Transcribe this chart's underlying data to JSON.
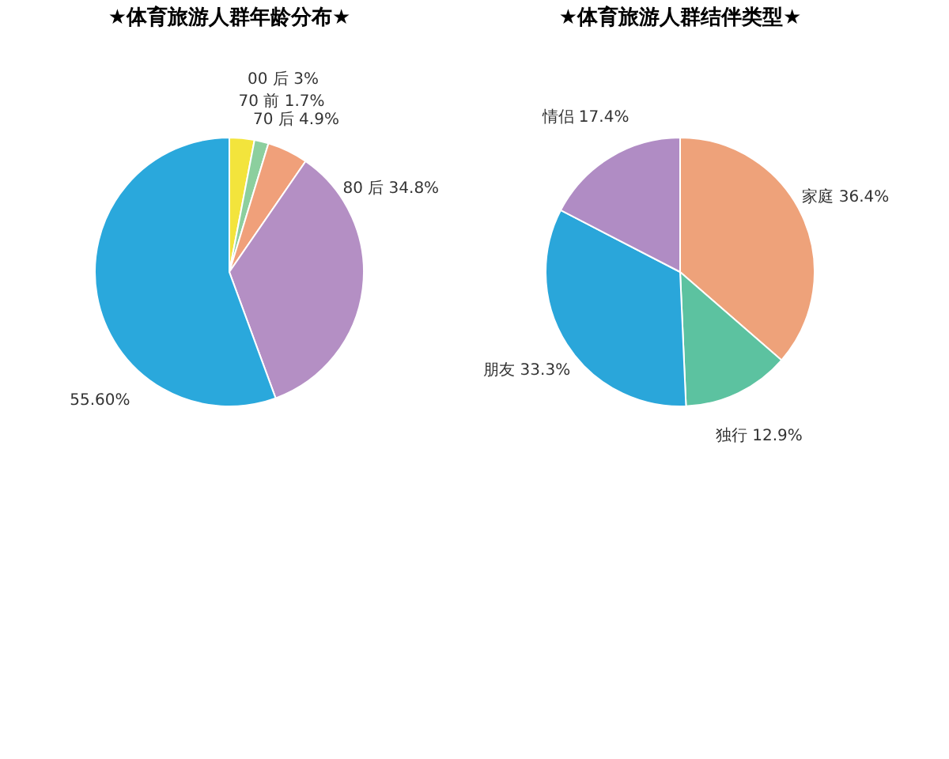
{
  "chart_data": [
    {
      "type": "pie",
      "title": "★体育旅游人群年龄分布★",
      "categories": [
        "00 后",
        "70 前",
        "70 后",
        "80 后",
        null
      ],
      "values": [
        3,
        1.7,
        4.9,
        34.8,
        55.6
      ],
      "value_labels": [
        "3%",
        "1.7%",
        "4.9%",
        "34.8%",
        "55.60%"
      ],
      "colors": [
        "#f3e43c",
        "#8ccf9e",
        "#f0a07a",
        "#b48fc4",
        "#2aa8dc"
      ]
    },
    {
      "type": "pie",
      "title": "★体育旅游人群结伴类型★",
      "categories": [
        "家庭",
        "独行",
        "朋友",
        "情侣"
      ],
      "values": [
        36.4,
        12.9,
        33.3,
        17.4
      ],
      "value_labels": [
        "36.4%",
        "12.9%",
        "33.3%",
        "17.4%"
      ],
      "colors": [
        "#eea27a",
        "#5cc2a0",
        "#2aa6da",
        "#b08cc4"
      ]
    }
  ]
}
